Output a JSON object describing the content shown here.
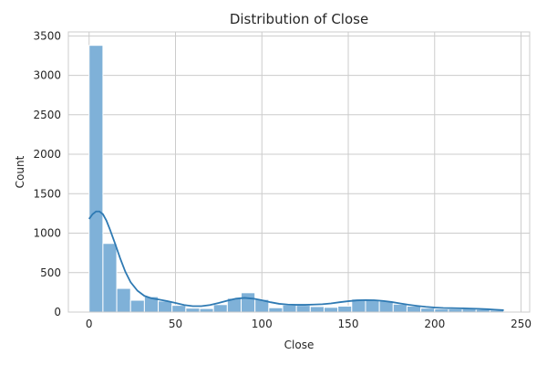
{
  "chart_data": {
    "type": "histogram",
    "title": "Distribution of Close",
    "xlabel": "Close",
    "ylabel": "Count",
    "xlim": [
      -12,
      255
    ],
    "ylim": [
      0,
      3550
    ],
    "xticks": [
      0,
      50,
      100,
      150,
      200,
      250
    ],
    "yticks": [
      0,
      500,
      1000,
      1500,
      2000,
      2500,
      3000,
      3500
    ],
    "grid": true,
    "bar_color": "#7fb1d8",
    "line_color": "#2f7ab3",
    "bins": [
      {
        "x0": 0,
        "x1": 8,
        "count": 3380
      },
      {
        "x0": 8,
        "x1": 16,
        "count": 870
      },
      {
        "x0": 16,
        "x1": 24,
        "count": 300
      },
      {
        "x0": 24,
        "x1": 32,
        "count": 150
      },
      {
        "x0": 32,
        "x1": 40,
        "count": 195
      },
      {
        "x0": 40,
        "x1": 48,
        "count": 140
      },
      {
        "x0": 48,
        "x1": 56,
        "count": 85
      },
      {
        "x0": 56,
        "x1": 64,
        "count": 50
      },
      {
        "x0": 64,
        "x1": 72,
        "count": 45
      },
      {
        "x0": 72,
        "x1": 80,
        "count": 95
      },
      {
        "x0": 80,
        "x1": 88,
        "count": 175
      },
      {
        "x0": 88,
        "x1": 96,
        "count": 245
      },
      {
        "x0": 96,
        "x1": 104,
        "count": 160
      },
      {
        "x0": 104,
        "x1": 112,
        "count": 55
      },
      {
        "x0": 112,
        "x1": 120,
        "count": 90
      },
      {
        "x0": 120,
        "x1": 128,
        "count": 85
      },
      {
        "x0": 128,
        "x1": 136,
        "count": 70
      },
      {
        "x0": 136,
        "x1": 144,
        "count": 60
      },
      {
        "x0": 144,
        "x1": 152,
        "count": 75
      },
      {
        "x0": 152,
        "x1": 160,
        "count": 165
      },
      {
        "x0": 160,
        "x1": 168,
        "count": 160
      },
      {
        "x0": 168,
        "x1": 176,
        "count": 140
      },
      {
        "x0": 176,
        "x1": 184,
        "count": 100
      },
      {
        "x0": 184,
        "x1": 192,
        "count": 75
      },
      {
        "x0": 192,
        "x1": 200,
        "count": 50
      },
      {
        "x0": 200,
        "x1": 208,
        "count": 40
      },
      {
        "x0": 208,
        "x1": 216,
        "count": 40
      },
      {
        "x0": 216,
        "x1": 224,
        "count": 40
      },
      {
        "x0": 224,
        "x1": 232,
        "count": 35
      },
      {
        "x0": 232,
        "x1": 240,
        "count": 25
      }
    ],
    "kde": [
      {
        "x": 0,
        "y": 1180
      },
      {
        "x": 2,
        "y": 1240
      },
      {
        "x": 4,
        "y": 1275
      },
      {
        "x": 6,
        "y": 1275
      },
      {
        "x": 8,
        "y": 1240
      },
      {
        "x": 10,
        "y": 1160
      },
      {
        "x": 12,
        "y": 1050
      },
      {
        "x": 15,
        "y": 870
      },
      {
        "x": 18,
        "y": 680
      },
      {
        "x": 21,
        "y": 510
      },
      {
        "x": 24,
        "y": 380
      },
      {
        "x": 28,
        "y": 270
      },
      {
        "x": 32,
        "y": 205
      },
      {
        "x": 36,
        "y": 175
      },
      {
        "x": 40,
        "y": 160
      },
      {
        "x": 45,
        "y": 140
      },
      {
        "x": 50,
        "y": 115
      },
      {
        "x": 55,
        "y": 90
      },
      {
        "x": 60,
        "y": 75
      },
      {
        "x": 65,
        "y": 75
      },
      {
        "x": 70,
        "y": 90
      },
      {
        "x": 75,
        "y": 115
      },
      {
        "x": 80,
        "y": 145
      },
      {
        "x": 85,
        "y": 170
      },
      {
        "x": 90,
        "y": 180
      },
      {
        "x": 95,
        "y": 170
      },
      {
        "x": 100,
        "y": 150
      },
      {
        "x": 105,
        "y": 125
      },
      {
        "x": 110,
        "y": 105
      },
      {
        "x": 115,
        "y": 95
      },
      {
        "x": 120,
        "y": 92
      },
      {
        "x": 125,
        "y": 92
      },
      {
        "x": 130,
        "y": 95
      },
      {
        "x": 135,
        "y": 100
      },
      {
        "x": 140,
        "y": 110
      },
      {
        "x": 145,
        "y": 125
      },
      {
        "x": 150,
        "y": 138
      },
      {
        "x": 155,
        "y": 148
      },
      {
        "x": 160,
        "y": 152
      },
      {
        "x": 165,
        "y": 150
      },
      {
        "x": 170,
        "y": 142
      },
      {
        "x": 175,
        "y": 128
      },
      {
        "x": 180,
        "y": 110
      },
      {
        "x": 185,
        "y": 92
      },
      {
        "x": 190,
        "y": 78
      },
      {
        "x": 195,
        "y": 66
      },
      {
        "x": 200,
        "y": 57
      },
      {
        "x": 205,
        "y": 52
      },
      {
        "x": 210,
        "y": 50
      },
      {
        "x": 215,
        "y": 48
      },
      {
        "x": 220,
        "y": 45
      },
      {
        "x": 225,
        "y": 42
      },
      {
        "x": 230,
        "y": 37
      },
      {
        "x": 235,
        "y": 30
      },
      {
        "x": 240,
        "y": 24
      }
    ]
  }
}
